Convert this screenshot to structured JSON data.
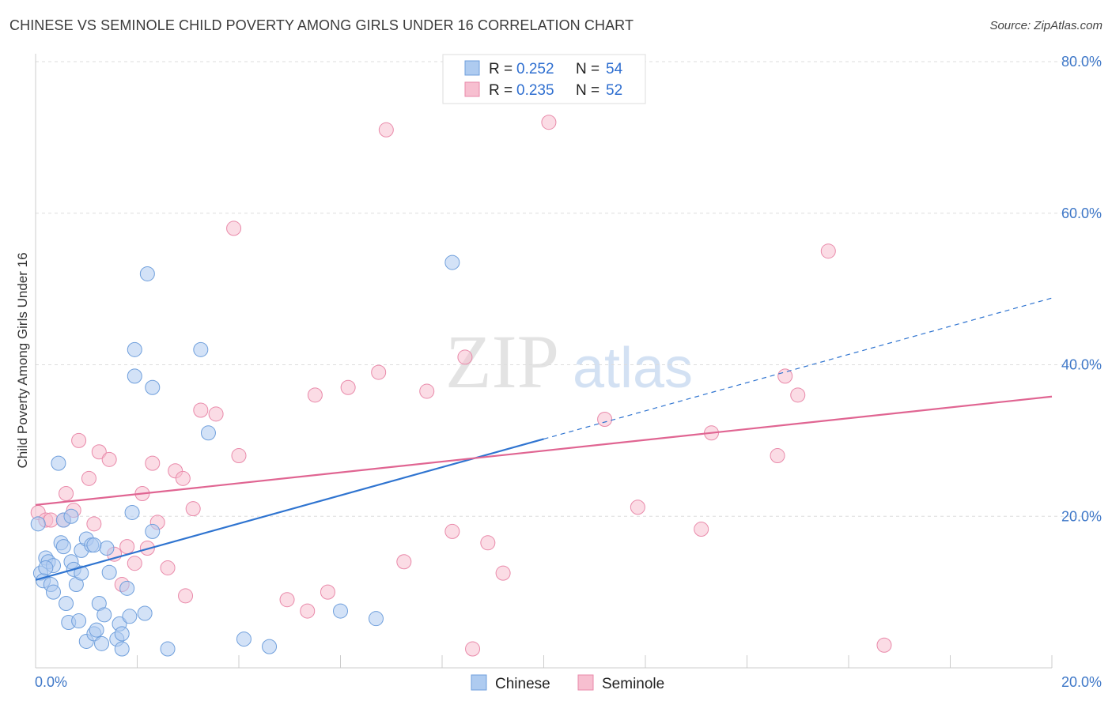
{
  "title": "CHINESE VS SEMINOLE CHILD POVERTY AMONG GIRLS UNDER 16 CORRELATION CHART",
  "source": "Source: ZipAtlas.com",
  "watermark": {
    "zip": "ZIP",
    "atlas": "atlas"
  },
  "legend": {
    "rows": [
      {
        "r_label": "R =",
        "r_value": "0.252",
        "n_label": "N =",
        "n_value": "54"
      },
      {
        "r_label": "R =",
        "r_value": "0.235",
        "n_label": "N =",
        "n_value": "52"
      }
    ]
  },
  "colors": {
    "chinese_fill": "#aecbf0",
    "chinese_stroke": "#6f9fdc",
    "chinese_line": "#2f74d0",
    "seminole_fill": "#f7bfd0",
    "seminole_stroke": "#e98aaa",
    "seminole_line": "#e06592",
    "tick": "#3f78c8",
    "grid": "#dddddd"
  },
  "chart_data": {
    "type": "scatter",
    "title": "CHINESE VS SEMINOLE CHILD POVERTY AMONG GIRLS UNDER 16 CORRELATION CHART",
    "xlabel": "",
    "ylabel": "Child Poverty Among Girls Under 16",
    "xlim": [
      0,
      20
    ],
    "ylim": [
      0,
      80
    ],
    "x_tick_labels": [
      "0.0%",
      "20.0%"
    ],
    "y_tick_labels": [
      "20.0%",
      "40.0%",
      "60.0%",
      "80.0%"
    ],
    "y_ticks": [
      20,
      40,
      60,
      80
    ],
    "grid": true,
    "legend_position": "top-center",
    "series": [
      {
        "name": "Chinese",
        "r": 0.252,
        "n": 54,
        "trend": {
          "x0": 0,
          "y0": 11.6,
          "x1": 10,
          "y1": 30.2,
          "dash_to_x": 20,
          "dash_to_y": 48.8
        },
        "points": [
          [
            0.05,
            19.0
          ],
          [
            0.1,
            12.5
          ],
          [
            0.15,
            11.5
          ],
          [
            0.2,
            14.5
          ],
          [
            0.25,
            14.0
          ],
          [
            0.3,
            11.0
          ],
          [
            0.35,
            10.0
          ],
          [
            0.35,
            13.5
          ],
          [
            0.45,
            27.0
          ],
          [
            0.5,
            16.5
          ],
          [
            0.55,
            19.5
          ],
          [
            0.6,
            8.5
          ],
          [
            0.65,
            6.0
          ],
          [
            0.7,
            14.0
          ],
          [
            0.7,
            20.0
          ],
          [
            0.75,
            13.0
          ],
          [
            0.8,
            11.0
          ],
          [
            0.85,
            6.2
          ],
          [
            0.9,
            12.5
          ],
          [
            0.9,
            15.5
          ],
          [
            1.0,
            3.5
          ],
          [
            1.0,
            17.0
          ],
          [
            1.1,
            16.2
          ],
          [
            1.15,
            4.5
          ],
          [
            1.2,
            5.0
          ],
          [
            1.25,
            8.5
          ],
          [
            1.3,
            3.2
          ],
          [
            1.35,
            7.0
          ],
          [
            1.4,
            15.8
          ],
          [
            1.45,
            12.6
          ],
          [
            1.6,
            3.8
          ],
          [
            1.65,
            5.8
          ],
          [
            1.7,
            4.5
          ],
          [
            1.7,
            2.5
          ],
          [
            1.8,
            10.5
          ],
          [
            1.85,
            6.8
          ],
          [
            1.9,
            20.5
          ],
          [
            1.95,
            42.0
          ],
          [
            1.95,
            38.5
          ],
          [
            2.15,
            7.2
          ],
          [
            2.2,
            52.0
          ],
          [
            2.3,
            18.0
          ],
          [
            2.3,
            37.0
          ],
          [
            2.6,
            2.5
          ],
          [
            3.25,
            42.0
          ],
          [
            3.4,
            31.0
          ],
          [
            4.1,
            3.8
          ],
          [
            4.6,
            2.8
          ],
          [
            6.0,
            7.5
          ],
          [
            6.7,
            6.5
          ],
          [
            8.2,
            53.5
          ],
          [
            0.55,
            16.0
          ],
          [
            1.15,
            16.2
          ],
          [
            0.2,
            13.2
          ]
        ]
      },
      {
        "name": "Seminole",
        "r": 0.235,
        "n": 52,
        "trend": {
          "x0": 0,
          "y0": 21.5,
          "x1": 20,
          "y1": 35.8
        },
        "points": [
          [
            0.05,
            20.5
          ],
          [
            0.2,
            19.5
          ],
          [
            0.3,
            19.5
          ],
          [
            0.55,
            19.5
          ],
          [
            0.6,
            23.0
          ],
          [
            0.75,
            20.8
          ],
          [
            0.85,
            30.0
          ],
          [
            1.05,
            25.0
          ],
          [
            1.15,
            19.0
          ],
          [
            1.25,
            28.5
          ],
          [
            1.45,
            27.5
          ],
          [
            1.55,
            15.0
          ],
          [
            1.7,
            11.0
          ],
          [
            1.8,
            16.0
          ],
          [
            1.95,
            13.8
          ],
          [
            2.1,
            23.0
          ],
          [
            2.2,
            15.8
          ],
          [
            2.3,
            27.0
          ],
          [
            2.4,
            19.2
          ],
          [
            2.6,
            13.2
          ],
          [
            2.75,
            26.0
          ],
          [
            2.9,
            25.0
          ],
          [
            2.95,
            9.5
          ],
          [
            3.1,
            21.0
          ],
          [
            3.25,
            34.0
          ],
          [
            3.55,
            33.5
          ],
          [
            3.9,
            58.0
          ],
          [
            4.0,
            28.0
          ],
          [
            4.95,
            9.0
          ],
          [
            5.35,
            7.5
          ],
          [
            5.5,
            36.0
          ],
          [
            5.75,
            10.0
          ],
          [
            6.15,
            37.0
          ],
          [
            6.75,
            39.0
          ],
          [
            6.9,
            71.0
          ],
          [
            7.25,
            14.0
          ],
          [
            7.7,
            36.5
          ],
          [
            8.2,
            18.0
          ],
          [
            8.45,
            41.0
          ],
          [
            8.6,
            2.5
          ],
          [
            8.9,
            16.5
          ],
          [
            9.2,
            12.5
          ],
          [
            10.1,
            72.0
          ],
          [
            11.2,
            32.8
          ],
          [
            11.85,
            21.2
          ],
          [
            13.1,
            18.3
          ],
          [
            13.3,
            31.0
          ],
          [
            14.6,
            28.0
          ],
          [
            14.75,
            38.5
          ],
          [
            15.0,
            36.0
          ],
          [
            15.6,
            55.0
          ],
          [
            16.7,
            3.0
          ]
        ]
      }
    ]
  },
  "bottom_legend": [
    {
      "label": "Chinese"
    },
    {
      "label": "Seminole"
    }
  ]
}
